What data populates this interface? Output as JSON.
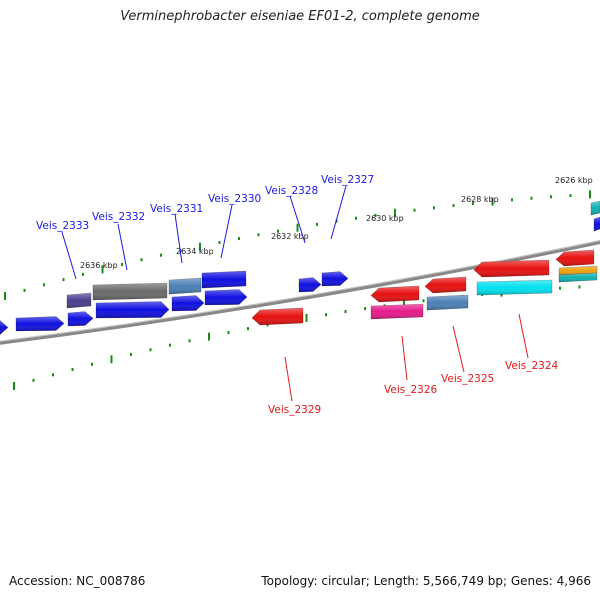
{
  "header": {
    "title": "Verminephrobacter eiseniae EF01-2, complete genome"
  },
  "footer": {
    "accession": "Accession: NC_008786",
    "topology": "Topology: circular; Length: 5,566,749 bp; Genes: 4,966"
  },
  "colors": {
    "backbone": "#8a8a8a",
    "tick": "#1a8a1a",
    "forward_label": "#1a1ae6",
    "reverse_label": "#e61a1a",
    "gene_blue": "#1010e0",
    "gene_red": "#e61010",
    "gene_gray": "#6a6a6a",
    "gene_steelblue": "#4a7fb5",
    "gene_slate": "#4a3f8f",
    "gene_cyan": "#00e0f0",
    "gene_magenta": "#e61a8a",
    "gene_orange": "#f0a010",
    "gene_teal": "#10b0b0"
  },
  "scale_labels": {
    "kbp_2636": "2636 kbp",
    "kbp_2634": "2634 kbp",
    "kbp_2632": "2632 kbp",
    "kbp_2630": "2630 kbp",
    "kbp_2628": "2628 kbp",
    "kbp_2626": "2626 kbp"
  },
  "forward_genes": {
    "veis_2333": "Veis_2333",
    "veis_2332": "Veis_2332",
    "veis_2331": "Veis_2331",
    "veis_2330": "Veis_2330",
    "veis_2328": "Veis_2328",
    "veis_2327": "Veis_2327"
  },
  "reverse_genes": {
    "veis_2329": "Veis_2329",
    "veis_2326": "Veis_2326",
    "veis_2325": "Veis_2325",
    "veis_2324": "Veis_2324"
  }
}
